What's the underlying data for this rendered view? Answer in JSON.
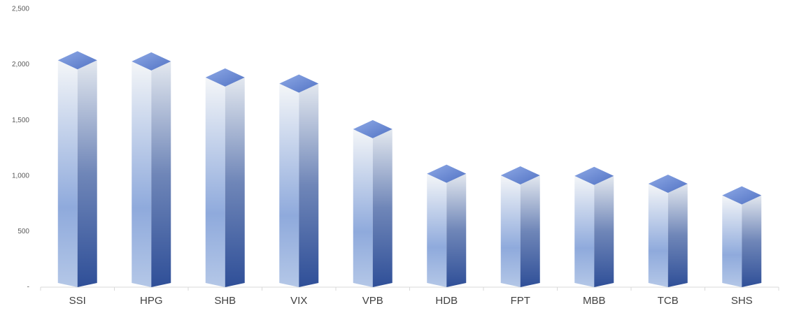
{
  "chart_data": {
    "type": "bar3d",
    "categories": [
      "SSI",
      "HPG",
      "SHB",
      "VIX",
      "VPB",
      "HDB",
      "FPT",
      "MBB",
      "TCB",
      "SHS"
    ],
    "values": [
      2040,
      2030,
      1885,
      1830,
      1420,
      1020,
      1005,
      1000,
      930,
      825
    ],
    "color": "#4472c4",
    "ylim": [
      0,
      2500
    ],
    "yticks": [
      {
        "value": 0,
        "label": "-"
      },
      500,
      {
        "value": 1000,
        "label": "1,000"
      },
      {
        "value": 1500,
        "label": "1,500"
      },
      {
        "value": 2000,
        "label": "2,000"
      },
      {
        "value": 2500,
        "label": "2,500"
      }
    ],
    "grid": false
  }
}
